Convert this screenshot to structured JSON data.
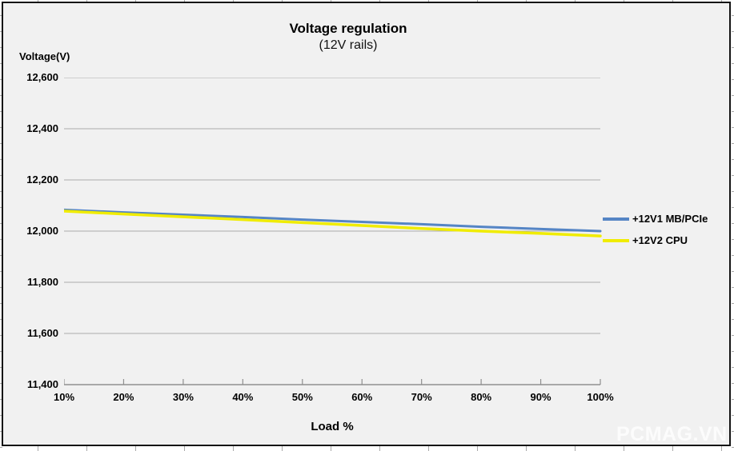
{
  "chart_data": {
    "type": "line",
    "title": "Voltage regulation",
    "subtitle": "(12V rails)",
    "y_axis_title": "Voltage(V)",
    "x_axis_title": "Load %",
    "categories": [
      "10%",
      "20%",
      "30%",
      "40%",
      "50%",
      "60%",
      "70%",
      "80%",
      "90%",
      "100%"
    ],
    "series": [
      {
        "name": "+12V1 MB/PCIe",
        "color": "#5585c5",
        "values": [
          12083,
          12073,
          12064,
          12055,
          12045,
          12036,
          12027,
          12017,
          12008,
          12000
        ]
      },
      {
        "name": "+12V2 CPU",
        "color": "#f0ec00",
        "values": [
          12078,
          12067,
          12056,
          12045,
          12033,
          12022,
          12010,
          12000,
          11991,
          11981
        ]
      }
    ],
    "ylim": [
      11400,
      12600
    ],
    "ytick_step": 200,
    "ytick_labels": [
      "12,600",
      "12,400",
      "12,200",
      "12,000",
      "11,800",
      "11,600",
      "11,400"
    ],
    "grid": true,
    "legend_position": "right"
  },
  "watermark": "PCMAG.VN",
  "colors": {
    "plot_background": "#f1f1f1",
    "gridline": "#ababab",
    "axis": "#8f8f8f",
    "frame_border": "#141414",
    "watermark": "#ffffff"
  }
}
